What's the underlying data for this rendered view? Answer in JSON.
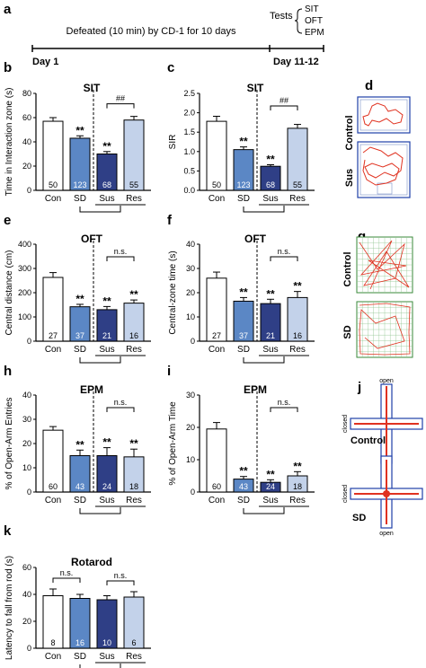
{
  "timeline": {
    "panel_letter": "a",
    "text": "Defeated (10 min) by CD-1 for 10 days",
    "day_start": "Day 1",
    "day_end": "Day 11-12",
    "tests_label": "Tests",
    "tests": [
      "SIT",
      "OFT",
      "EPM"
    ]
  },
  "colors": {
    "Con": "#ffffff",
    "SD": "#5b87c5",
    "Sus": "#2f3f86",
    "Res": "#c3d2ea"
  },
  "chart_data": [
    {
      "panel": "b",
      "type": "bar",
      "title": "SIT",
      "ylabel": "Time in Interaction zone (s)",
      "ylim": [
        0,
        80
      ],
      "yticks": [
        0,
        20,
        40,
        60,
        80
      ],
      "categories": [
        "Con",
        "SD",
        "Sus",
        "Res"
      ],
      "values": [
        57,
        43,
        30,
        58
      ],
      "errors": [
        3,
        2,
        2,
        3
      ],
      "n": [
        "50",
        "123",
        "68",
        "55"
      ],
      "stars": [
        "",
        "**",
        "**",
        ""
      ],
      "compare": "##"
    },
    {
      "panel": "c",
      "type": "bar",
      "title": "SIT",
      "ylabel": "SIR",
      "ylim": [
        0,
        2.5
      ],
      "yticks": [
        0.0,
        0.5,
        1.0,
        1.5,
        2.0,
        2.5
      ],
      "categories": [
        "Con",
        "SD",
        "Sus",
        "Res"
      ],
      "values": [
        1.78,
        1.05,
        0.62,
        1.6
      ],
      "errors": [
        0.13,
        0.07,
        0.04,
        0.1
      ],
      "n": [
        "50",
        "123",
        "68",
        "55"
      ],
      "stars": [
        "",
        "**",
        "**",
        ""
      ],
      "compare": "##"
    },
    {
      "panel": "e",
      "type": "bar",
      "title": "OFT",
      "ylabel": "Central distance (cm)",
      "ylim": [
        0,
        400
      ],
      "yticks": [
        0,
        100,
        200,
        300,
        400
      ],
      "categories": [
        "Con",
        "SD",
        "Sus",
        "Res"
      ],
      "values": [
        263,
        142,
        130,
        157
      ],
      "errors": [
        20,
        10,
        13,
        13
      ],
      "n": [
        "27",
        "37",
        "21",
        "16"
      ],
      "stars": [
        "",
        "**",
        "**",
        "**"
      ],
      "compare": "n.s."
    },
    {
      "panel": "f",
      "type": "bar",
      "title": "OFT",
      "ylabel": "Central-zone time (s)",
      "ylim": [
        0,
        40
      ],
      "yticks": [
        0,
        10,
        20,
        30,
        40
      ],
      "categories": [
        "Con",
        "SD",
        "Sus",
        "Res"
      ],
      "values": [
        26,
        16.5,
        15.5,
        18
      ],
      "errors": [
        2.5,
        1.5,
        1.8,
        2.5
      ],
      "n": [
        "27",
        "37",
        "21",
        "16"
      ],
      "stars": [
        "",
        "**",
        "**",
        "**"
      ],
      "compare": "n.s."
    },
    {
      "panel": "h",
      "type": "bar",
      "title": "EPM",
      "ylabel": "% of Open-Arm Entries",
      "ylim": [
        0,
        40
      ],
      "yticks": [
        0,
        10,
        20,
        30,
        40
      ],
      "categories": [
        "Con",
        "SD",
        "Sus",
        "Res"
      ],
      "values": [
        25.5,
        15,
        15,
        14.5
      ],
      "errors": [
        1.5,
        2.3,
        3.3,
        3.2
      ],
      "n": [
        "60",
        "43",
        "24",
        "18"
      ],
      "stars": [
        "",
        "**",
        "**",
        "**"
      ],
      "compare": "n.s."
    },
    {
      "panel": "i",
      "type": "bar",
      "title": "EPM",
      "ylabel": "% of Open-Arm Time",
      "ylim": [
        0,
        30
      ],
      "yticks": [
        0,
        10,
        20,
        30
      ],
      "categories": [
        "Con",
        "SD",
        "Sus",
        "Res"
      ],
      "values": [
        19.5,
        4,
        3,
        5
      ],
      "errors": [
        2,
        0.8,
        0.8,
        1.3
      ],
      "n": [
        "60",
        "43",
        "24",
        "18"
      ],
      "stars": [
        "",
        "**",
        "**",
        "**"
      ],
      "compare": "n.s."
    },
    {
      "panel": "k",
      "type": "bar",
      "title": "Rotarod",
      "ylabel": "Latency to fall from rod (s)",
      "ylim": [
        0,
        60
      ],
      "yticks": [
        0,
        20,
        40,
        60
      ],
      "categories": [
        "Con",
        "SD",
        "Sus",
        "Res"
      ],
      "values": [
        39,
        37,
        36,
        38
      ],
      "errors": [
        5,
        3,
        3,
        4
      ],
      "n": [
        "8",
        "16",
        "10",
        "6"
      ],
      "stars": [
        "",
        "",
        "",
        ""
      ],
      "compare2": [
        "n.s.",
        "n.s."
      ]
    }
  ],
  "tracks": {
    "d": {
      "letter": "d",
      "labels": [
        "Control",
        "Sus"
      ]
    },
    "g": {
      "letter": "g",
      "labels": [
        "Control",
        "SD"
      ]
    },
    "j": {
      "letter": "j",
      "labels": [
        "Control",
        "SD"
      ],
      "open": "open",
      "closed": "closed"
    }
  }
}
